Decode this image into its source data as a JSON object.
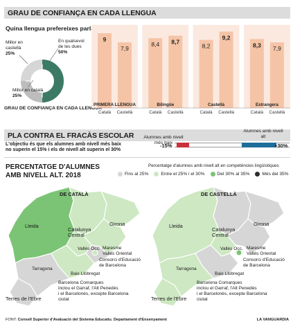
{
  "section1": {
    "title": "GRAU DE CONFIANÇA EN CADA LLENGUA",
    "question": "Quina llengua prefereixes parlar?",
    "donut_labels": {
      "castellano": [
        "Millor en",
        "castellà",
        "25%"
      ],
      "both": [
        "En qualsevol",
        "de les dues",
        "50%"
      ],
      "catalan": [
        "Millor en català",
        "25%"
      ]
    },
    "footer_left": "GRAU DE CONFIANÇA EN CADA LLENGUA",
    "colors": {
      "bar": "#f5c4a6",
      "panel": "#fbe9e0",
      "donut_dark": "#3d7a66",
      "donut_light": "#d6d6d6"
    }
  },
  "section2": {
    "title": "PLA CONTRA EL FRACÀS ESCOLAR",
    "description": [
      "L'objectiu és que els alumnes amb nivell més baix",
      "no superin el 15% i els de nivell alt superin el 30%"
    ],
    "low_label": [
      "Alumnes amb nivell",
      "més baix"
    ],
    "high_label": [
      "Alumnes amb nivell",
      "alt"
    ],
    "low_target": "-15%",
    "high_target": "+30%",
    "colors": {
      "low": "#c8323a",
      "high": "#1f6e9a"
    }
  },
  "section3": {
    "title": [
      "PERCENTATGE D'ALUMNES",
      "AMB NIVELL ALT. 2018"
    ],
    "legend_title": "Percentatge d'alumnes amb nivell alt en competències lingüístiques",
    "legend": [
      {
        "label": "Fins al 25%",
        "color": "#d6d6d6"
      },
      {
        "label": "Entre el 25% i el 30%",
        "color": "#cde8c2"
      },
      {
        "label": "Del 30% al 35%",
        "color": "#7cc475"
      },
      {
        "label": "Més del 35%",
        "color": "#2e2e2e"
      }
    ],
    "map_left_title": "DE CATALÀ",
    "map_right_title": "DE CASTELLÀ",
    "regions": {
      "lleida": "Lleida",
      "catalunya_central": [
        "Catalunya",
        "Central"
      ],
      "girona": "Girona",
      "valles_occ": "Vallès Occ.",
      "maresme": [
        "Maresme",
        "Vallès Oriental"
      ],
      "consorci": [
        "Consorci d'Educació",
        "de Barcelona"
      ],
      "baix_llobregat": "Baix Llobregat",
      "tarragona": "Tarragona",
      "terres_ebre": "Terres de l'Ebre",
      "comarques": [
        "Barcelona Comarques",
        "inclou el Garraf, l'Alt Penedès",
        "i el Barcelonès, excepte Barcelona",
        "ciutat"
      ]
    }
  },
  "footer": {
    "source_label": "FONT:",
    "source": "Consell Superior d'Avaluació del Sistema Educatiu. Departament d'Ensenyament",
    "brand": "LA VANGUARDIA"
  },
  "chart_data": {
    "type": "bar",
    "title": "GRAU DE CONFIANÇA EN CADA LLENGUA",
    "groups": [
      "PRIMERA LLENGUA",
      "Bilingüe",
      "Castellà",
      "Estrangera"
    ],
    "series_labels": [
      "Català",
      "Castellà"
    ],
    "values": [
      [
        9,
        7.9
      ],
      [
        8.4,
        8.7
      ],
      [
        8.2,
        9.2
      ],
      [
        8.3,
        7.9
      ]
    ],
    "value_labels": [
      [
        "9",
        "7,9"
      ],
      [
        "8,4",
        "8,7"
      ],
      [
        "8,2",
        "9,2"
      ],
      [
        "8,3",
        "7,9"
      ]
    ],
    "ylim": [
      0,
      10
    ],
    "grid": false
  }
}
